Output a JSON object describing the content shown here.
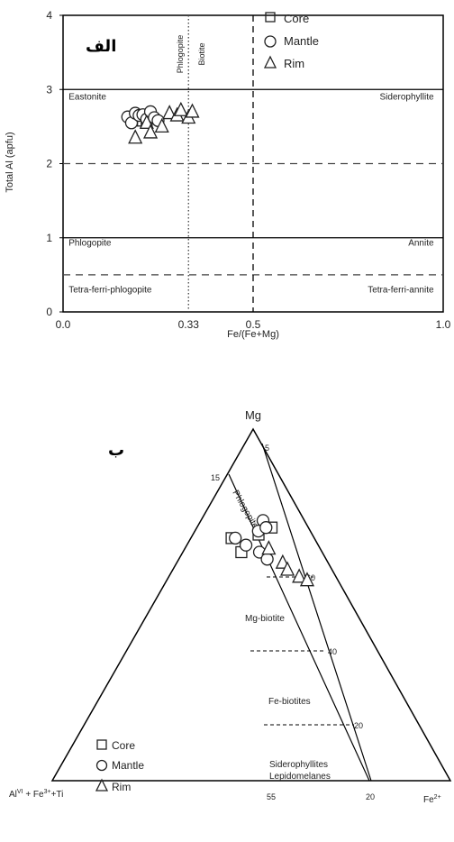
{
  "chart_data": [
    {
      "type": "scatter",
      "title_fa": "الف",
      "xlabel": "Fe/(Fe+Mg)",
      "ylabel": "Total Al (apfu)",
      "xlim": [
        0,
        1
      ],
      "ylim": [
        0,
        4
      ],
      "x_ticks": [
        "0.0",
        "0.33",
        "0.5",
        "1.0"
      ],
      "x_tick_values": [
        0,
        0.33,
        0.5,
        1.0
      ],
      "y_ticks": [
        "0",
        "1",
        "2",
        "3",
        "4"
      ],
      "y_tick_values": [
        0,
        1,
        2,
        3,
        4
      ],
      "reference_lines": {
        "solid_y": [
          1,
          3
        ],
        "dashed_y": [
          0.5,
          2
        ],
        "dotted_x": 0.33,
        "dashed_x": 0.5
      },
      "vertical_labels": {
        "left": "Phlogopite",
        "right": "Biotite"
      },
      "field_labels": [
        {
          "text": "Eastonite",
          "x": 0.01,
          "y": 2.9
        },
        {
          "text": "Siderophyllite",
          "x": 0.98,
          "y": 2.9
        },
        {
          "text": "Phlogopite",
          "x": 0.01,
          "y": 0.93
        },
        {
          "text": "Annite",
          "x": 0.98,
          "y": 0.93
        },
        {
          "text": "Tetra-ferri-phlogopite",
          "x": 0.01,
          "y": 0.3
        },
        {
          "text": "Tetra-ferri-annite",
          "x": 0.98,
          "y": 0.3
        }
      ],
      "legend": {
        "position": "top-center",
        "entries": [
          "Core",
          "Mantle",
          "Rim"
        ]
      },
      "series": [
        {
          "name": "Core",
          "marker": "square",
          "points": [
            [
              0.2,
              2.62
            ],
            [
              0.21,
              2.58
            ],
            [
              0.22,
              2.55
            ]
          ]
        },
        {
          "name": "Mantle",
          "marker": "circle",
          "points": [
            [
              0.17,
              2.63
            ],
            [
              0.18,
              2.55
            ],
            [
              0.19,
              2.68
            ],
            [
              0.2,
              2.65
            ],
            [
              0.21,
              2.66
            ],
            [
              0.22,
              2.6
            ],
            [
              0.23,
              2.7
            ],
            [
              0.24,
              2.62
            ],
            [
              0.25,
              2.58
            ]
          ]
        },
        {
          "name": "Rim",
          "marker": "triangle",
          "points": [
            [
              0.19,
              2.35
            ],
            [
              0.22,
              2.55
            ],
            [
              0.23,
              2.42
            ],
            [
              0.26,
              2.5
            ],
            [
              0.28,
              2.68
            ],
            [
              0.3,
              2.65
            ],
            [
              0.31,
              2.72
            ],
            [
              0.33,
              2.62
            ],
            [
              0.34,
              2.7
            ]
          ]
        }
      ]
    },
    {
      "type": "ternary",
      "title_fa": "ب",
      "vertices": {
        "top": "Mg",
        "left": "Al^VI + Fe^3+ + Ti",
        "right": "Fe^2+"
      },
      "vertex_text": {
        "top": "Mg",
        "left_main": "Al",
        "left_sup": "VI",
        "left_rest": "+ Fe",
        "left_sup2": "3+",
        "left_tail": "+Ti",
        "right_main": "Fe",
        "right_sup": "2+"
      },
      "edge_ticks": {
        "left_edge": [
          "15"
        ],
        "top_right": [
          "5"
        ],
        "bottom": [
          "55",
          "20"
        ]
      },
      "internal_ticks": [
        "60",
        "40",
        "20"
      ],
      "field_labels": [
        "Phlogopite",
        "Mg-biotite",
        "Fe-biotites",
        "Siderophyllites",
        "Lepidomelanes"
      ],
      "legend": {
        "position": "bottom-left",
        "entries": [
          "Core",
          "Mantle",
          "Rim"
        ]
      },
      "series": [
        {
          "name": "Core",
          "marker": "square",
          "points": [
            [
              0.72,
              0.67
            ],
            [
              0.69,
              0.33
            ],
            [
              0.65,
              0.42
            ],
            [
              0.7,
              0.55
            ]
          ]
        },
        {
          "name": "Mantle",
          "marker": "circle",
          "points": [
            [
              0.74,
              0.6
            ],
            [
              0.71,
              0.55
            ],
            [
              0.69,
              0.36
            ],
            [
              0.67,
              0.45
            ],
            [
              0.65,
              0.55
            ],
            [
              0.72,
              0.62
            ],
            [
              0.63,
              0.6
            ]
          ]
        },
        {
          "name": "Rim",
          "marker": "triangle",
          "points": [
            [
              0.66,
              0.62
            ],
            [
              0.62,
              0.7
            ],
            [
              0.6,
              0.72
            ],
            [
              0.58,
              0.78
            ],
            [
              0.57,
              0.82
            ]
          ]
        }
      ]
    }
  ]
}
